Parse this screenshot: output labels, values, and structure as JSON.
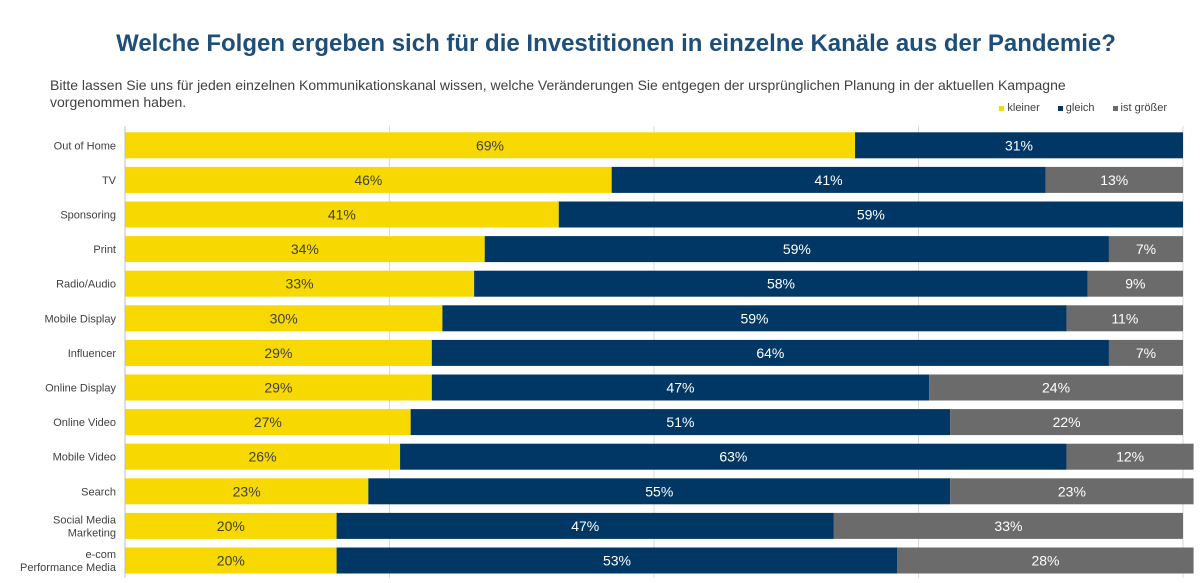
{
  "chart_data": {
    "type": "bar",
    "orientation": "horizontal",
    "stacked": true,
    "title": "Welche Folgen ergeben sich für die Investitionen in einzelne Kanäle aus der Pandemie?",
    "subtitle": "Bitte lassen Sie uns für jeden einzelnen Kommunikationskanal wissen, welche Veränderungen Sie entgegen der ursprünglichen Planung in der aktuellen Kampagne vorgenommen haben.",
    "categories": [
      [
        "Out of Home"
      ],
      [
        "TV"
      ],
      [
        "Sponsoring"
      ],
      [
        "Print"
      ],
      [
        "Radio/Audio"
      ],
      [
        "Mobile Display"
      ],
      [
        "Influencer"
      ],
      [
        "Online Display"
      ],
      [
        "Online Video"
      ],
      [
        "Mobile Video"
      ],
      [
        "Search"
      ],
      [
        "Social Media",
        "Marketing"
      ],
      [
        "e-com",
        "Performance Media"
      ]
    ],
    "series": [
      {
        "name": "kleiner",
        "color": "#f7d800",
        "label_color": "#404040",
        "values": [
          69,
          46,
          41,
          34,
          33,
          30,
          29,
          29,
          27,
          26,
          23,
          20,
          20
        ]
      },
      {
        "name": "gleich",
        "color": "#003764",
        "label_color": "#ffffff",
        "values": [
          31,
          41,
          59,
          59,
          58,
          59,
          64,
          47,
          51,
          63,
          55,
          47,
          53
        ]
      },
      {
        "name": "ist größer",
        "color": "#6b6b6b",
        "label_color": "#ffffff",
        "values": [
          0,
          13,
          0,
          7,
          9,
          11,
          7,
          24,
          22,
          12,
          23,
          33,
          28
        ]
      }
    ],
    "value_suffix": "%",
    "xlim": [
      0,
      100
    ],
    "gridlines": true,
    "legend_position": "top-right"
  }
}
